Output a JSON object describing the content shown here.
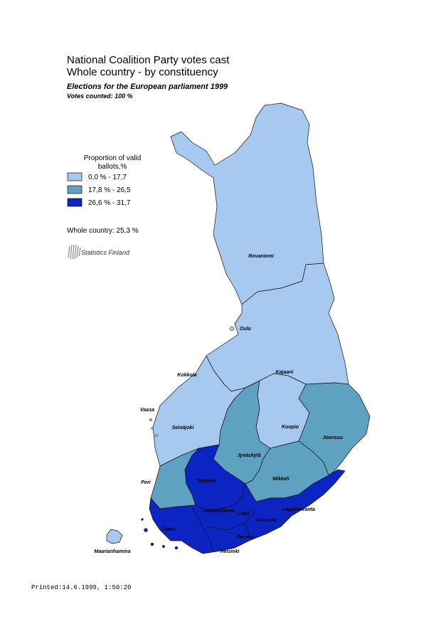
{
  "header": {
    "title_lines": [
      "National Coalition Party votes cast",
      "Whole country - by constituency"
    ],
    "subtitle": "Elections for the European parliament 1999",
    "votes_counted": "Votes counted: 100 %"
  },
  "legend": {
    "title_lines": [
      "Proportion of valid",
      "ballots,%"
    ],
    "classes": [
      {
        "label": "0,0 % - 17,7",
        "color": "#a8c9ef"
      },
      {
        "label": "17,8 % - 26,5",
        "color": "#5fa1c1"
      },
      {
        "label": "26,6 % - 31,7",
        "color": "#0c25c2"
      }
    ]
  },
  "whole_country": "Whole country: 25,3 %",
  "logo": "Statistics Finland",
  "map": {
    "places": [
      "Rovaniemi",
      "Oulu",
      "Kokkola",
      "Kajaani",
      "Vaasa",
      "Seinäjoki",
      "Kuopio",
      "Joensuu",
      "Jyväskylä",
      "Pori",
      "Tampere",
      "Mikkeli",
      "Hämeenlinna",
      "Lahti",
      "Lappeenranta",
      "Kouvola",
      "Turku",
      "Porvoo",
      "Helsinki",
      "Maarianhamina"
    ]
  },
  "footer": "Printed:14.6.1999, 1:50:20"
}
